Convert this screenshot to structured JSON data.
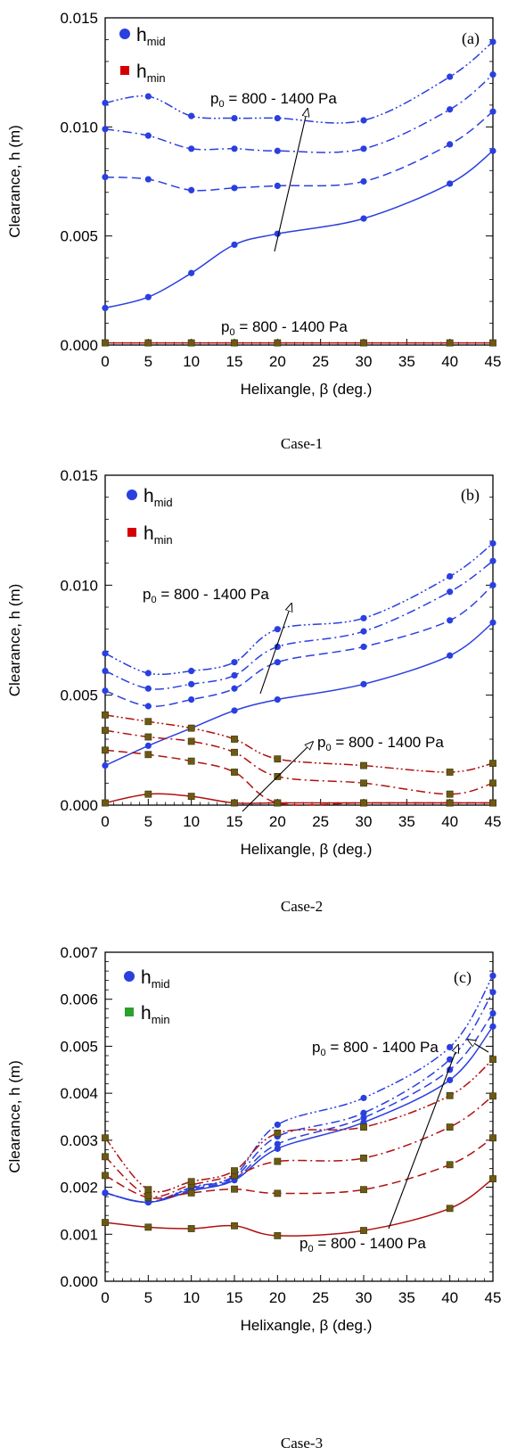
{
  "panels": [
    {
      "id": "a",
      "panel_label": "(a)",
      "caption": "Case-1",
      "ylabel": "Clearance, h (m)",
      "xlabel": "Helixangle, β (deg.)",
      "legend": {
        "mid": "h",
        "mid_sub": "mid",
        "min": "h",
        "min_sub": "min",
        "min_color": "#d40000"
      },
      "annotations": [
        {
          "text": "p",
          "sub": "0",
          "rest": " = 800 - 1400 Pa"
        },
        {
          "text": "p",
          "sub": "0",
          "rest": " = 800 - 1400 Pa"
        }
      ]
    },
    {
      "id": "b",
      "panel_label": "(b)",
      "caption": "Case-2",
      "ylabel": "Clearance, h (m)",
      "xlabel": "Helixangle, β (deg.)",
      "legend": {
        "mid": "h",
        "mid_sub": "mid",
        "min": "h",
        "min_sub": "min",
        "min_color": "#d40000"
      },
      "annotations": [
        {
          "text": "p",
          "sub": "0",
          "rest": " = 800 - 1400 Pa"
        },
        {
          "text": "p",
          "sub": "0",
          "rest": " = 800 - 1400 Pa"
        }
      ]
    },
    {
      "id": "c",
      "panel_label": "(c)",
      "caption": "Case-3",
      "ylabel": "Clearance, h (m)",
      "xlabel": "Helixangle, β (deg.)",
      "legend": {
        "mid": "h",
        "mid_sub": "mid",
        "min": "h",
        "min_sub": "min",
        "min_color": "#2ca02c"
      },
      "annotations": [
        {
          "text": "p",
          "sub": "0",
          "rest": " = 800 - 1400 Pa"
        },
        {
          "text": "p",
          "sub": "0",
          "rest": " = 800 - 1400 Pa"
        }
      ]
    }
  ],
  "chart_data": [
    {
      "type": "line",
      "x": [
        0,
        5,
        10,
        15,
        20,
        30,
        40,
        45
      ],
      "xlim": [
        0,
        45
      ],
      "xticks": [
        "0",
        "5",
        "10",
        "15",
        "20",
        "25",
        "30",
        "35",
        "40",
        "45"
      ],
      "ylim": [
        0,
        0.015
      ],
      "yticks": [
        "0.000",
        "0.005",
        "0.010",
        "0.015"
      ],
      "colors": {
        "mid": "#2a3fe0",
        "min": "#b01010",
        "min_marker": "#6b5a12"
      },
      "series": [
        {
          "group": "mid",
          "dash": "solid",
          "values": [
            0.0017,
            0.0022,
            0.0033,
            0.0046,
            0.0051,
            0.0058,
            0.0074,
            0.0089
          ]
        },
        {
          "group": "mid",
          "dash": "dash",
          "values": [
            0.0077,
            0.0076,
            0.0071,
            0.0072,
            0.0073,
            0.0075,
            0.0092,
            0.0107
          ]
        },
        {
          "group": "mid",
          "dash": "dashdot",
          "values": [
            0.0099,
            0.0096,
            0.009,
            0.009,
            0.0089,
            0.009,
            0.0108,
            0.0124
          ]
        },
        {
          "group": "mid",
          "dash": "dashdotdot",
          "values": [
            0.0111,
            0.0114,
            0.0105,
            0.0104,
            0.0104,
            0.0103,
            0.0123,
            0.0139
          ]
        },
        {
          "group": "min",
          "dash": "solid",
          "values": [
            0.0001,
            0.0001,
            0.0001,
            0.0001,
            0.0001,
            0.0001,
            0.0001,
            0.0001
          ]
        }
      ]
    },
    {
      "type": "line",
      "x": [
        0,
        5,
        10,
        15,
        20,
        30,
        40,
        45
      ],
      "xlim": [
        0,
        45
      ],
      "xticks": [
        "0",
        "5",
        "10",
        "15",
        "20",
        "25",
        "30",
        "35",
        "40",
        "45"
      ],
      "ylim": [
        0,
        0.015
      ],
      "yticks": [
        "0.000",
        "0.005",
        "0.010",
        "0.015"
      ],
      "colors": {
        "mid": "#2a3fe0",
        "min": "#b01010",
        "min_marker": "#6b5a12"
      },
      "series": [
        {
          "group": "mid",
          "dash": "solid",
          "values": [
            0.0018,
            0.0027,
            0.0035,
            0.0043,
            0.0048,
            0.0055,
            0.0068,
            0.0083
          ]
        },
        {
          "group": "mid",
          "dash": "dash",
          "values": [
            0.0052,
            0.0045,
            0.0048,
            0.0053,
            0.0065,
            0.0072,
            0.0084,
            0.01
          ]
        },
        {
          "group": "mid",
          "dash": "dashdot",
          "values": [
            0.0061,
            0.0053,
            0.0055,
            0.0059,
            0.0072,
            0.0079,
            0.0097,
            0.0111
          ]
        },
        {
          "group": "mid",
          "dash": "dashdotdot",
          "values": [
            0.0069,
            0.006,
            0.0061,
            0.0065,
            0.008,
            0.0085,
            0.0104,
            0.0119
          ]
        },
        {
          "group": "min",
          "dash": "solid",
          "values": [
            0.0001,
            0.0005,
            0.0004,
            0.0001,
            0.0001,
            0.0001,
            0.0001,
            0.0001
          ]
        },
        {
          "group": "min",
          "dash": "dash",
          "values": [
            0.0025,
            0.0023,
            0.002,
            0.0015,
            0.0001,
            0.0001,
            0.0001,
            0.0001
          ]
        },
        {
          "group": "min",
          "dash": "dashdot",
          "values": [
            0.0034,
            0.0031,
            0.0029,
            0.0024,
            0.0013,
            0.001,
            0.0005,
            0.001
          ]
        },
        {
          "group": "min",
          "dash": "dashdotdot",
          "values": [
            0.0041,
            0.0038,
            0.0035,
            0.003,
            0.0021,
            0.0018,
            0.0015,
            0.0019
          ]
        }
      ]
    },
    {
      "type": "line",
      "x": [
        0,
        5,
        10,
        15,
        20,
        30,
        40,
        45
      ],
      "xlim": [
        0,
        45
      ],
      "xticks": [
        "0",
        "5",
        "10",
        "15",
        "20",
        "25",
        "30",
        "35",
        "40",
        "45"
      ],
      "ylim": [
        0,
        0.007
      ],
      "yticks": [
        "0.000",
        "0.001",
        "0.002",
        "0.003",
        "0.004",
        "0.005",
        "0.006",
        "0.007"
      ],
      "colors": {
        "mid": "#2a3fe0",
        "min": "#b01010",
        "min_marker": "#6b5a12"
      },
      "series": [
        {
          "group": "mid",
          "dash": "solid",
          "values": [
            0.00188,
            0.00168,
            0.00192,
            0.00215,
            0.00282,
            0.00338,
            0.00428,
            0.00542
          ]
        },
        {
          "group": "mid",
          "dash": "dash",
          "values": [
            0.00188,
            0.00168,
            0.00195,
            0.00218,
            0.00292,
            0.00348,
            0.0045,
            0.0057
          ]
        },
        {
          "group": "mid",
          "dash": "dashdot",
          "values": [
            0.00188,
            0.00168,
            0.00198,
            0.00222,
            0.00308,
            0.00358,
            0.00472,
            0.00615
          ]
        },
        {
          "group": "mid",
          "dash": "dashdotdot",
          "values": [
            0.00188,
            0.00168,
            0.002,
            0.00225,
            0.00333,
            0.0039,
            0.00498,
            0.0065
          ]
        },
        {
          "group": "min",
          "dash": "solid",
          "values": [
            0.00125,
            0.00115,
            0.00112,
            0.00118,
            0.00097,
            0.00108,
            0.00155,
            0.00218
          ]
        },
        {
          "group": "min",
          "dash": "dash",
          "values": [
            0.00225,
            0.00178,
            0.00188,
            0.00196,
            0.00187,
            0.00195,
            0.00248,
            0.00305
          ]
        },
        {
          "group": "min",
          "dash": "dashdot",
          "values": [
            0.00265,
            0.00182,
            0.00205,
            0.00225,
            0.00255,
            0.00262,
            0.00328,
            0.00394
          ]
        },
        {
          "group": "min",
          "dash": "dashdotdot",
          "values": [
            0.00305,
            0.00195,
            0.00212,
            0.00235,
            0.00315,
            0.00328,
            0.00395,
            0.00472
          ]
        }
      ]
    }
  ]
}
